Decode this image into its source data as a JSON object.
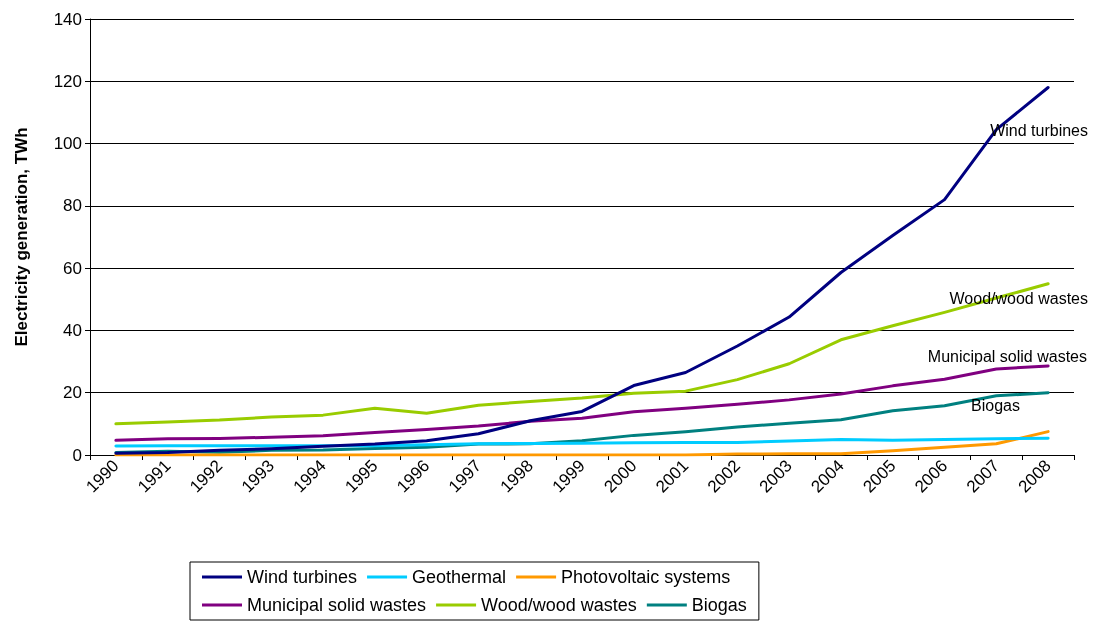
{
  "chart_data": {
    "type": "line",
    "ylabel": "Electricity generation, TWh",
    "categories": [
      "1990",
      "1991",
      "1992",
      "1993",
      "1994",
      "1995",
      "1996",
      "1997",
      "1998",
      "1999",
      "2000",
      "2001",
      "2002",
      "2003",
      "2004",
      "2005",
      "2006",
      "2007",
      "2008"
    ],
    "series": [
      {
        "name": "Wind turbines",
        "color": "#000080",
        "values": [
          0.6,
          0.8,
          1.5,
          2,
          2.8,
          3.5,
          4.6,
          6.8,
          11,
          14,
          22.3,
          26.5,
          35,
          44.3,
          58.6,
          70.5,
          82,
          104.5,
          118
        ]
      },
      {
        "name": "Geothermal",
        "color": "#00ccff",
        "values": [
          2.9,
          3,
          3,
          3,
          3,
          3,
          3.3,
          3.6,
          3.7,
          3.8,
          3.9,
          4,
          4,
          4.5,
          5,
          4.7,
          5,
          5.2,
          5.4
        ]
      },
      {
        "name": "Photovoltaic systems",
        "color": "#ff9900",
        "values": [
          0,
          0,
          0,
          0,
          0,
          0,
          0,
          0,
          0,
          0,
          0,
          0,
          0.3,
          0.4,
          0.4,
          1.4,
          2.5,
          3.6,
          7.5
        ]
      },
      {
        "name": "Municipal solid wastes",
        "color": "#800080",
        "values": [
          4.7,
          5.2,
          5.3,
          5.7,
          6.2,
          7.2,
          8.2,
          9.3,
          10.8,
          11.8,
          13.9,
          15,
          16.3,
          17.7,
          19.6,
          22.2,
          24.3,
          27.6,
          28.6
        ]
      },
      {
        "name": "Wood/wood wastes",
        "color": "#99cc00",
        "values": [
          10,
          10.6,
          11.2,
          12.2,
          12.8,
          15,
          13.4,
          16,
          17.2,
          18.3,
          19.8,
          20.5,
          24.2,
          29.3,
          37,
          41.5,
          45.8,
          50.4,
          55
        ]
      },
      {
        "name": "Biogas",
        "color": "#008080",
        "values": [
          0.8,
          1.2,
          0.9,
          1.5,
          1.6,
          2.1,
          2.5,
          3.5,
          3.6,
          4.6,
          6.3,
          7.5,
          9,
          10.2,
          11.3,
          14.2,
          15.8,
          19,
          20
        ]
      }
    ],
    "annotations": [
      "Wind turbines",
      "Wood/wood wastes",
      "Municipal solid wastes",
      "Biogas"
    ],
    "ylim": [
      0,
      140
    ],
    "yticks": [
      0,
      20,
      40,
      60,
      80,
      100,
      120,
      140
    ],
    "grid": "y",
    "legend": "bottom",
    "marker": "none",
    "line_style": "solid"
  }
}
